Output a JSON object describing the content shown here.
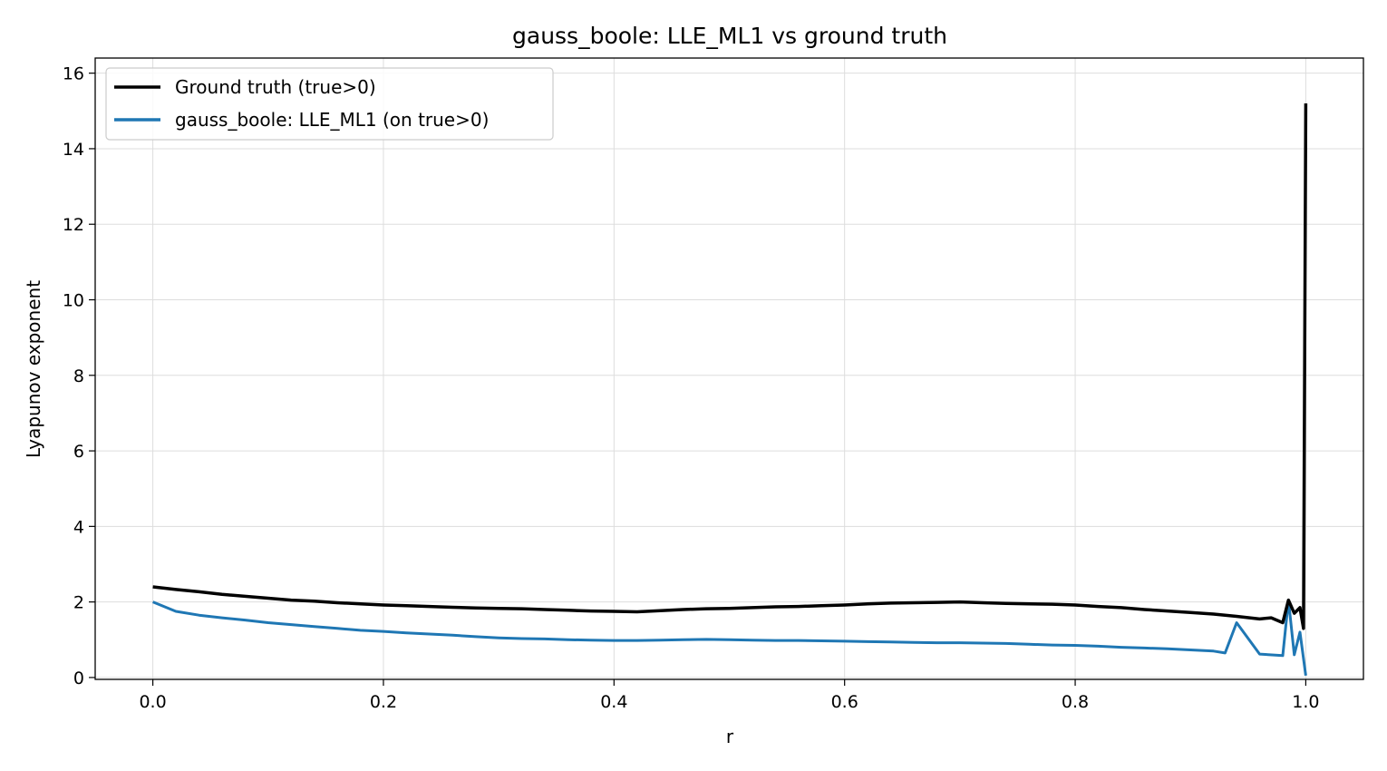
{
  "chart_data": {
    "type": "line",
    "title": "gauss_boole: LLE_ML1 vs ground truth",
    "xlabel": "r",
    "ylabel": "Lyapunov exponent",
    "xlim": [
      -0.05,
      1.05
    ],
    "ylim": [
      -0.05,
      16.4
    ],
    "xticks": [
      0.0,
      0.2,
      0.4,
      0.6,
      0.8,
      1.0
    ],
    "xtick_labels": [
      "0.0",
      "0.2",
      "0.4",
      "0.6",
      "0.8",
      "1.0"
    ],
    "yticks": [
      0,
      2,
      4,
      6,
      8,
      10,
      12,
      14,
      16
    ],
    "ytick_labels": [
      "0",
      "2",
      "4",
      "6",
      "8",
      "10",
      "12",
      "14",
      "16"
    ],
    "grid": true,
    "legend_position": "top-left",
    "series": [
      {
        "name": "Ground truth (true>0)",
        "color": "#000000",
        "x": [
          0.0,
          0.02,
          0.04,
          0.06,
          0.08,
          0.1,
          0.12,
          0.14,
          0.16,
          0.18,
          0.2,
          0.22,
          0.24,
          0.26,
          0.28,
          0.3,
          0.32,
          0.34,
          0.36,
          0.38,
          0.4,
          0.42,
          0.44,
          0.46,
          0.48,
          0.5,
          0.52,
          0.54,
          0.56,
          0.58,
          0.6,
          0.62,
          0.64,
          0.66,
          0.68,
          0.7,
          0.72,
          0.74,
          0.76,
          0.78,
          0.8,
          0.82,
          0.84,
          0.86,
          0.88,
          0.9,
          0.92,
          0.94,
          0.96,
          0.97,
          0.98,
          0.985,
          0.99,
          0.995,
          0.998,
          1.0
        ],
        "y": [
          2.4,
          2.33,
          2.27,
          2.2,
          2.15,
          2.1,
          2.05,
          2.02,
          1.98,
          1.95,
          1.92,
          1.9,
          1.88,
          1.86,
          1.84,
          1.83,
          1.82,
          1.8,
          1.78,
          1.76,
          1.75,
          1.74,
          1.77,
          1.8,
          1.82,
          1.83,
          1.85,
          1.87,
          1.88,
          1.9,
          1.92,
          1.95,
          1.97,
          1.98,
          1.99,
          2.0,
          1.98,
          1.96,
          1.95,
          1.94,
          1.92,
          1.88,
          1.85,
          1.8,
          1.76,
          1.72,
          1.68,
          1.62,
          1.55,
          1.58,
          1.45,
          2.05,
          1.7,
          1.85,
          1.3,
          15.2
        ]
      },
      {
        "name": "gauss_boole: LLE_ML1 (on true>0)",
        "color": "#1f77b4",
        "x": [
          0.0,
          0.02,
          0.04,
          0.06,
          0.08,
          0.1,
          0.12,
          0.14,
          0.16,
          0.18,
          0.2,
          0.22,
          0.24,
          0.26,
          0.28,
          0.3,
          0.32,
          0.34,
          0.36,
          0.38,
          0.4,
          0.42,
          0.44,
          0.46,
          0.48,
          0.5,
          0.52,
          0.54,
          0.56,
          0.58,
          0.6,
          0.62,
          0.64,
          0.66,
          0.68,
          0.7,
          0.72,
          0.74,
          0.76,
          0.78,
          0.8,
          0.82,
          0.84,
          0.86,
          0.88,
          0.9,
          0.92,
          0.93,
          0.94,
          0.96,
          0.98,
          0.985,
          0.99,
          0.995,
          1.0
        ],
        "y": [
          2.0,
          1.75,
          1.65,
          1.58,
          1.52,
          1.45,
          1.4,
          1.35,
          1.3,
          1.25,
          1.22,
          1.18,
          1.15,
          1.12,
          1.08,
          1.05,
          1.03,
          1.02,
          1.0,
          0.99,
          0.98,
          0.98,
          0.99,
          1.0,
          1.01,
          1.0,
          0.99,
          0.98,
          0.98,
          0.97,
          0.96,
          0.95,
          0.94,
          0.93,
          0.92,
          0.92,
          0.91,
          0.9,
          0.88,
          0.86,
          0.85,
          0.83,
          0.8,
          0.78,
          0.76,
          0.73,
          0.7,
          0.65,
          1.45,
          0.62,
          0.58,
          2.05,
          0.6,
          1.2,
          0.05
        ]
      }
    ]
  }
}
